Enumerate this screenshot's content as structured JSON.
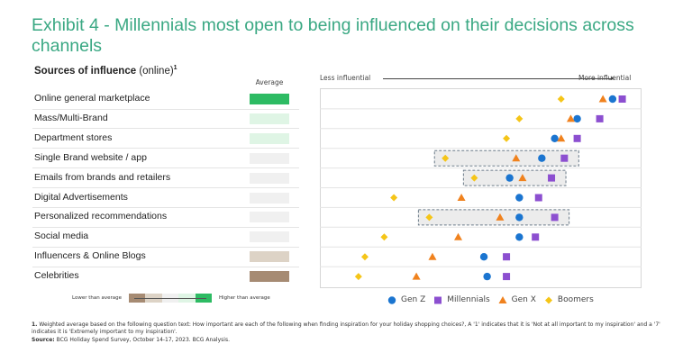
{
  "title": "Exhibit 4 - Millennials most open to being influenced on their decisions across channels",
  "subhead": {
    "text": "Sources of influence ",
    "paren": "(online)",
    "sup": "1"
  },
  "average_label": "Average",
  "scale_legend": {
    "low": "Lower than average",
    "high": "Higher than average",
    "colors": [
      "#a68b73",
      "#ddd3c6",
      "#f0f0f0",
      "#dff5e5",
      "#2dbb63"
    ]
  },
  "footnote": {
    "num": "1.",
    "text": " Weighted average based on the following question text: How important are each of the following when finding inspiration for your holiday shopping choices?, A '1' indicates that it is 'Not at all important to my inspiration' and a '7' indicates it is 'Extremely important to my inspiration'.",
    "source_label": "Source:",
    "source": " BCG Holiday Spend Survey, October 14-17, 2023. BCG Analysis."
  },
  "chart_data": {
    "type": "scatter",
    "xlabel_left": "Less influential",
    "xlabel_right": "More influential",
    "xlim": [
      0,
      100
    ],
    "grid": true,
    "legend_position": "bottom",
    "categories": [
      "Online general marketplace",
      "Mass/Multi-Brand",
      "Department stores",
      "Single Brand website / app",
      "Emails from brands and retailers",
      "Digital Advertisements",
      "Personalized recommendations",
      "Social media",
      "Influencers & Online Blogs",
      "Celebrities"
    ],
    "average_level": [
      "higher",
      "slightly higher",
      "slightly higher",
      "average",
      "average",
      "average",
      "average",
      "average",
      "slightly lower",
      "lower"
    ],
    "average_colors": [
      "#2dbb63",
      "#dff5e5",
      "#dff5e5",
      "#f0f0f0",
      "#f0f0f0",
      "#f0f0f0",
      "#f0f0f0",
      "#f0f0f0",
      "#ddd3c6",
      "#a68b73"
    ],
    "highlighted": [
      false,
      false,
      false,
      true,
      true,
      false,
      true,
      false,
      false,
      false
    ],
    "series": [
      {
        "name": "Gen Z",
        "marker": "circle",
        "color": "#1b75d0",
        "values": [
          91,
          80,
          73,
          69,
          59,
          62,
          62,
          62,
          51,
          52
        ]
      },
      {
        "name": "Millennials",
        "marker": "square",
        "color": "#8c4fd0",
        "values": [
          94,
          87,
          80,
          76,
          72,
          68,
          73,
          67,
          58,
          58
        ]
      },
      {
        "name": "Gen X",
        "marker": "triangle",
        "color": "#f0821e",
        "values": [
          88,
          78,
          75,
          61,
          63,
          44,
          56,
          43,
          35,
          30
        ]
      },
      {
        "name": "Boomers",
        "marker": "diamond",
        "color": "#f5c518",
        "values": [
          75,
          62,
          58,
          39,
          48,
          23,
          34,
          20,
          14,
          12
        ]
      }
    ]
  }
}
